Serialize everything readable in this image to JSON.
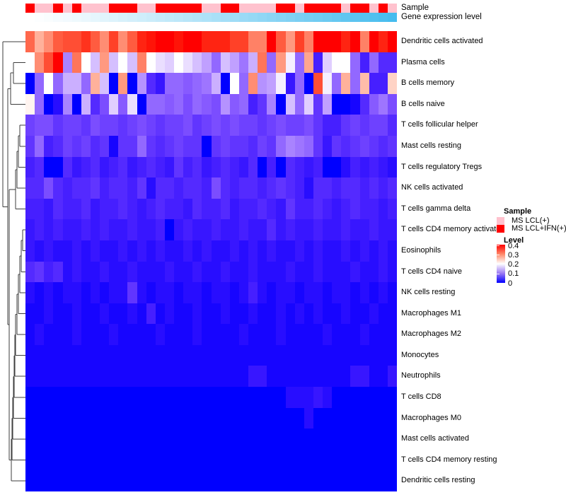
{
  "annotation_labels": {
    "sample": "Sample",
    "gene_expression": "Gene expression level"
  },
  "chart_data": {
    "type": "heatmap",
    "title": "",
    "rows": [
      "Dendritic cells activated",
      "Plasma cells",
      "B cells memory",
      "B cells naive",
      "T cells follicular helper",
      "Mast cells resting",
      "T cells regulatory  Tregs",
      "NK cells activated",
      "T cells gamma delta",
      "T cells CD4 memory activated",
      "Eosinophils",
      "T cells CD4 naive",
      "NK cells resting",
      "Macrophages M1",
      "Macrophages M2",
      "Monocytes",
      "Neutrophils",
      "T cells CD8",
      "Macrophages M0",
      "Mast cells activated",
      "T cells CD4 memory resting",
      "Dendritic cells resting"
    ],
    "n_columns": 40,
    "column_annotations": {
      "sample": {
        "label": "Sample",
        "pattern": [
          "R",
          "P",
          "P",
          "R",
          "P",
          "R",
          "P",
          "P",
          "P",
          "R",
          "R",
          "R",
          "P",
          "P",
          "R",
          "R",
          "R",
          "R",
          "R",
          "P",
          "P",
          "R",
          "R",
          "P",
          "P",
          "P",
          "P",
          "R",
          "R",
          "P",
          "R",
          "R",
          "R",
          "R",
          "P",
          "R",
          "R",
          "P",
          "R",
          "P"
        ],
        "colors": {
          "P": "#FFC2CE",
          "R": "#FF0000"
        }
      },
      "gene_expression_level": {
        "label": "Gene expression level",
        "type": "gradient",
        "from": "#FFFFFF",
        "to": "#46BCEE"
      }
    },
    "color_scale": {
      "min": 0,
      "mid": 0.2,
      "max": 0.4,
      "low": "#0000FF",
      "mid_color": "#FFFFFF",
      "high": "#FF0000"
    },
    "values": [
      [
        0.33,
        0.27,
        0.3,
        0.34,
        0.35,
        0.35,
        0.37,
        0.34,
        0.3,
        0.36,
        0.3,
        0.34,
        0.38,
        0.39,
        0.4,
        0.4,
        0.39,
        0.4,
        0.4,
        0.38,
        0.38,
        0.38,
        0.36,
        0.36,
        0.31,
        0.31,
        0.4,
        0.34,
        0.29,
        0.36,
        0.31,
        0.4,
        0.4,
        0.4,
        0.38,
        0.4,
        0.31,
        0.4,
        0.38,
        0.4
      ],
      [
        0.2,
        0.3,
        0.35,
        0.4,
        0.12,
        0.32,
        0.2,
        0.16,
        0.29,
        0.16,
        0.2,
        0.16,
        0.31,
        0.2,
        0.18,
        0.17,
        0.2,
        0.18,
        0.16,
        0.14,
        0.1,
        0.16,
        0.14,
        0.11,
        0.15,
        0.32,
        0.1,
        0.29,
        0.19,
        0.1,
        0.28,
        0.04,
        0.17,
        0.2,
        0.2,
        0.1,
        0.04,
        0.1,
        0.05,
        0.05
      ],
      [
        0.0,
        0.1,
        0.2,
        0.1,
        0.15,
        0.15,
        0.1,
        0.27,
        0.16,
        0.0,
        0.29,
        0.0,
        0.13,
        0.05,
        0.03,
        0.1,
        0.1,
        0.09,
        0.1,
        0.11,
        0.15,
        0.0,
        0.2,
        0.1,
        0.3,
        0.13,
        0.14,
        0.19,
        0.03,
        0.1,
        0.0,
        0.35,
        0.19,
        0.1,
        0.27,
        0.1,
        0.26,
        0.04,
        0.04,
        0.24
      ],
      [
        0.21,
        0.1,
        0.0,
        0.02,
        0.12,
        0.0,
        0.15,
        0.05,
        0.08,
        0.17,
        0.09,
        0.18,
        0.0,
        0.1,
        0.1,
        0.09,
        0.1,
        0.08,
        0.1,
        0.09,
        0.08,
        0.13,
        0.09,
        0.1,
        0.04,
        0.06,
        0.12,
        0.0,
        0.16,
        0.1,
        0.17,
        0.06,
        0.14,
        0.0,
        0.0,
        0.01,
        0.05,
        0.09,
        0.11,
        0.08
      ],
      [
        0.07,
        0.08,
        0.08,
        0.06,
        0.07,
        0.07,
        0.06,
        0.08,
        0.07,
        0.07,
        0.06,
        0.07,
        0.08,
        0.07,
        0.06,
        0.07,
        0.07,
        0.08,
        0.06,
        0.07,
        0.08,
        0.07,
        0.08,
        0.07,
        0.07,
        0.06,
        0.07,
        0.08,
        0.07,
        0.07,
        0.08,
        0.06,
        0.04,
        0.04,
        0.06,
        0.07,
        0.06,
        0.07,
        0.07,
        0.05
      ],
      [
        0.06,
        0.1,
        0.04,
        0.05,
        0.07,
        0.06,
        0.07,
        0.05,
        0.06,
        0.01,
        0.06,
        0.06,
        0.1,
        0.06,
        0.05,
        0.06,
        0.07,
        0.06,
        0.06,
        0.0,
        0.06,
        0.07,
        0.06,
        0.06,
        0.05,
        0.07,
        0.06,
        0.1,
        0.12,
        0.11,
        0.1,
        0.06,
        0.03,
        0.06,
        0.05,
        0.06,
        0.07,
        0.06,
        0.05,
        0.06
      ],
      [
        0.04,
        0.05,
        0.0,
        0.0,
        0.05,
        0.03,
        0.04,
        0.05,
        0.03,
        0.04,
        0.05,
        0.03,
        0.04,
        0.05,
        0.04,
        0.03,
        0.06,
        0.04,
        0.05,
        0.03,
        0.04,
        0.05,
        0.04,
        0.03,
        0.05,
        0.0,
        0.04,
        0.0,
        0.05,
        0.04,
        0.03,
        0.04,
        0.0,
        0.0,
        0.02,
        0.04,
        0.03,
        0.04,
        0.03,
        0.02
      ],
      [
        0.05,
        0.05,
        0.08,
        0.05,
        0.04,
        0.05,
        0.05,
        0.06,
        0.04,
        0.05,
        0.05,
        0.04,
        0.06,
        0.02,
        0.05,
        0.05,
        0.04,
        0.05,
        0.05,
        0.04,
        0.08,
        0.05,
        0.04,
        0.05,
        0.05,
        0.04,
        0.05,
        0.06,
        0.05,
        0.04,
        0.02,
        0.05,
        0.05,
        0.04,
        0.05,
        0.05,
        0.04,
        0.05,
        0.04,
        0.05
      ],
      [
        0.04,
        0.04,
        0.03,
        0.05,
        0.04,
        0.04,
        0.05,
        0.03,
        0.04,
        0.04,
        0.05,
        0.04,
        0.03,
        0.04,
        0.05,
        0.04,
        0.04,
        0.03,
        0.05,
        0.04,
        0.04,
        0.05,
        0.03,
        0.04,
        0.04,
        0.05,
        0.04,
        0.03,
        0.06,
        0.04,
        0.04,
        0.05,
        0.04,
        0.03,
        0.04,
        0.05,
        0.04,
        0.04,
        0.03,
        0.04
      ],
      [
        0.03,
        0.04,
        0.03,
        0.04,
        0.03,
        0.03,
        0.04,
        0.03,
        0.04,
        0.03,
        0.03,
        0.04,
        0.03,
        0.03,
        0.04,
        0.0,
        0.03,
        0.04,
        0.03,
        0.03,
        0.04,
        0.03,
        0.03,
        0.04,
        0.03,
        0.03,
        0.05,
        0.03,
        0.04,
        0.03,
        0.03,
        0.04,
        0.03,
        0.03,
        0.04,
        0.03,
        0.03,
        0.04,
        0.03,
        0.03
      ],
      [
        0.03,
        0.02,
        0.03,
        0.02,
        0.02,
        0.03,
        0.02,
        0.03,
        0.02,
        0.02,
        0.03,
        0.02,
        0.03,
        0.02,
        0.03,
        0.02,
        0.02,
        0.03,
        0.02,
        0.03,
        0.02,
        0.02,
        0.03,
        0.02,
        0.03,
        0.02,
        0.03,
        0.02,
        0.02,
        0.03,
        0.02,
        0.03,
        0.02,
        0.02,
        0.03,
        0.02,
        0.03,
        0.02,
        0.03,
        0.02
      ],
      [
        0.05,
        0.06,
        0.04,
        0.05,
        0.02,
        0.03,
        0.02,
        0.02,
        0.03,
        0.02,
        0.02,
        0.03,
        0.02,
        0.02,
        0.02,
        0.03,
        0.02,
        0.02,
        0.03,
        0.02,
        0.02,
        0.03,
        0.02,
        0.02,
        0.03,
        0.02,
        0.02,
        0.02,
        0.03,
        0.02,
        0.02,
        0.03,
        0.02,
        0.02,
        0.02,
        0.03,
        0.02,
        0.02,
        0.03,
        0.02
      ],
      [
        0.02,
        0.01,
        0.02,
        0.01,
        0.02,
        0.02,
        0.01,
        0.02,
        0.01,
        0.02,
        0.02,
        0.06,
        0.02,
        0.01,
        0.02,
        0.02,
        0.01,
        0.02,
        0.02,
        0.01,
        0.02,
        0.02,
        0.01,
        0.02,
        0.04,
        0.02,
        0.01,
        0.02,
        0.02,
        0.01,
        0.02,
        0.02,
        0.01,
        0.02,
        0.02,
        0.01,
        0.02,
        0.01,
        0.02,
        0.01
      ],
      [
        0.01,
        0.01,
        0.02,
        0.01,
        0.01,
        0.02,
        0.01,
        0.01,
        0.02,
        0.01,
        0.01,
        0.02,
        0.01,
        0.04,
        0.01,
        0.02,
        0.01,
        0.01,
        0.02,
        0.01,
        0.01,
        0.02,
        0.01,
        0.01,
        0.02,
        0.01,
        0.01,
        0.02,
        0.01,
        0.02,
        0.01,
        0.02,
        0.01,
        0.01,
        0.02,
        0.01,
        0.01,
        0.02,
        0.01,
        0.01
      ],
      [
        0.01,
        0.02,
        0.01,
        0.01,
        0.01,
        0.02,
        0.01,
        0.01,
        0.01,
        0.02,
        0.01,
        0.01,
        0.01,
        0.01,
        0.02,
        0.01,
        0.01,
        0.01,
        0.02,
        0.01,
        0.01,
        0.01,
        0.01,
        0.02,
        0.01,
        0.01,
        0.01,
        0.02,
        0.01,
        0.01,
        0.01,
        0.01,
        0.02,
        0.01,
        0.01,
        0.01,
        0.02,
        0.01,
        0.01,
        0.01
      ],
      [
        0.01,
        0.01,
        0.01,
        0.01,
        0.01,
        0.01,
        0.01,
        0.01,
        0.01,
        0.01,
        0.01,
        0.01,
        0.01,
        0.01,
        0.01,
        0.01,
        0.01,
        0.01,
        0.01,
        0.01,
        0.01,
        0.01,
        0.01,
        0.01,
        0.01,
        0.01,
        0.01,
        0.01,
        0.01,
        0.01,
        0.01,
        0.01,
        0.01,
        0.01,
        0.01,
        0.01,
        0.01,
        0.01,
        0.01,
        0.01
      ],
      [
        0.01,
        0.01,
        0.01,
        0.01,
        0.01,
        0.01,
        0.01,
        0.01,
        0.01,
        0.01,
        0.01,
        0.01,
        0.01,
        0.01,
        0.01,
        0.01,
        0.01,
        0.01,
        0.01,
        0.01,
        0.01,
        0.01,
        0.01,
        0.01,
        0.03,
        0.03,
        0.01,
        0.01,
        0.01,
        0.01,
        0.01,
        0.01,
        0.01,
        0.01,
        0.01,
        0.03,
        0.03,
        0.01,
        0.01,
        0.03
      ],
      [
        0.0,
        0.0,
        0.0,
        0.0,
        0.0,
        0.0,
        0.0,
        0.0,
        0.0,
        0.0,
        0.0,
        0.0,
        0.0,
        0.0,
        0.0,
        0.0,
        0.0,
        0.0,
        0.0,
        0.0,
        0.0,
        0.0,
        0.0,
        0.0,
        0.0,
        0.0,
        0.0,
        0.0,
        0.02,
        0.02,
        0.02,
        0.03,
        0.02,
        0.0,
        0.0,
        0.0,
        0.0,
        0.0,
        0.0,
        0.0
      ],
      [
        0.0,
        0.0,
        0.0,
        0.0,
        0.0,
        0.0,
        0.0,
        0.0,
        0.0,
        0.0,
        0.0,
        0.0,
        0.0,
        0.0,
        0.0,
        0.0,
        0.0,
        0.0,
        0.0,
        0.0,
        0.0,
        0.0,
        0.0,
        0.0,
        0.0,
        0.0,
        0.0,
        0.0,
        0.0,
        0.0,
        0.02,
        0.0,
        0.0,
        0.0,
        0.0,
        0.0,
        0.0,
        0.0,
        0.0,
        0.0
      ],
      [
        0.0,
        0.0,
        0.0,
        0.0,
        0.0,
        0.0,
        0.0,
        0.0,
        0.0,
        0.0,
        0.0,
        0.0,
        0.0,
        0.0,
        0.0,
        0.0,
        0.0,
        0.0,
        0.0,
        0.0,
        0.0,
        0.0,
        0.0,
        0.0,
        0.0,
        0.0,
        0.0,
        0.0,
        0.0,
        0.0,
        0.0,
        0.0,
        0.0,
        0.0,
        0.0,
        0.0,
        0.0,
        0.0,
        0.0,
        0.0
      ],
      [
        0.0,
        0.0,
        0.0,
        0.0,
        0.0,
        0.0,
        0.0,
        0.0,
        0.0,
        0.0,
        0.0,
        0.0,
        0.0,
        0.0,
        0.0,
        0.0,
        0.0,
        0.0,
        0.0,
        0.0,
        0.0,
        0.0,
        0.0,
        0.0,
        0.0,
        0.0,
        0.0,
        0.0,
        0.0,
        0.0,
        0.0,
        0.0,
        0.0,
        0.0,
        0.0,
        0.0,
        0.0,
        0.0,
        0.0,
        0.0
      ],
      [
        0.0,
        0.0,
        0.0,
        0.0,
        0.0,
        0.0,
        0.0,
        0.0,
        0.0,
        0.0,
        0.0,
        0.0,
        0.0,
        0.0,
        0.0,
        0.0,
        0.0,
        0.0,
        0.0,
        0.0,
        0.0,
        0.0,
        0.0,
        0.0,
        0.0,
        0.0,
        0.0,
        0.0,
        0.0,
        0.0,
        0.0,
        0.0,
        0.0,
        0.0,
        0.0,
        0.0,
        0.0,
        0.0,
        0.0,
        0.0
      ]
    ],
    "legend": {
      "sample": {
        "title": "Sample",
        "entries": [
          {
            "label": "MS LCL(+)",
            "color": "#FFC2CE"
          },
          {
            "label": "MS LCL+IFN(+)",
            "color": "#FF0000"
          }
        ]
      },
      "level": {
        "title": "Level",
        "ticks": [
          "0.4",
          "0.3",
          "0.2",
          "0.1",
          "0"
        ]
      }
    }
  }
}
